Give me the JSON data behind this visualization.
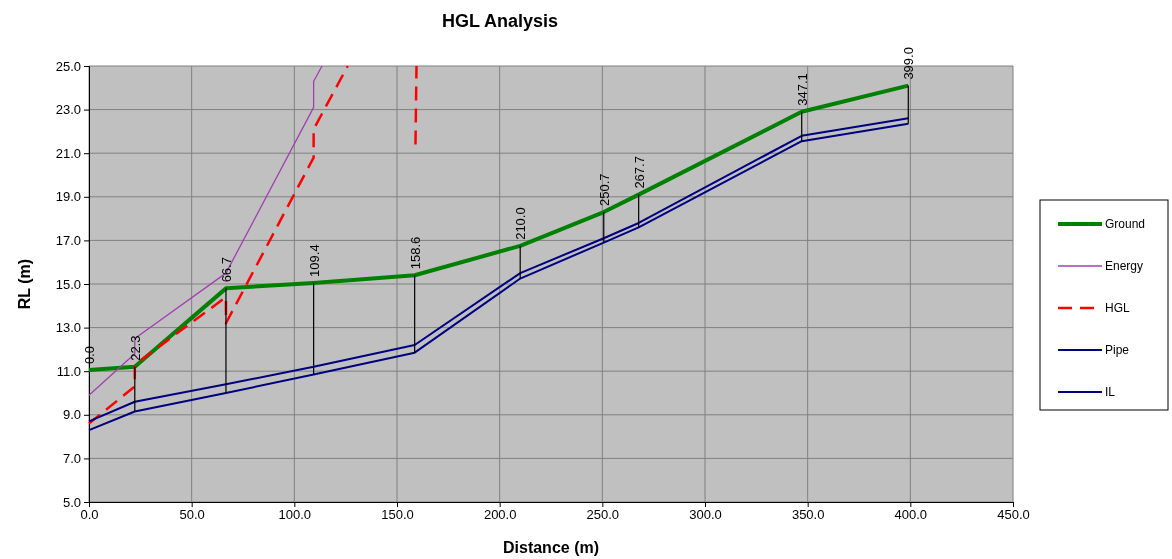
{
  "chart_data": {
    "type": "line",
    "title": "HGL Analysis",
    "xlabel": "Distance (m)",
    "ylabel": "RL (m)",
    "xlim": [
      0,
      450
    ],
    "ylim": [
      5,
      25
    ],
    "xticks": [
      {
        "value": 0,
        "label": "0.0"
      },
      {
        "value": 50,
        "label": "50.0"
      },
      {
        "value": 100,
        "label": "100.0"
      },
      {
        "value": 150,
        "label": "150.0"
      },
      {
        "value": 200,
        "label": "200.0"
      },
      {
        "value": 250,
        "label": "250.0"
      },
      {
        "value": 300,
        "label": "300.0"
      },
      {
        "value": 350,
        "label": "350.0"
      },
      {
        "value": 400,
        "label": "400.0"
      },
      {
        "value": 450,
        "label": "450.0"
      }
    ],
    "yticks": [
      {
        "value": 5,
        "label": "5.0"
      },
      {
        "value": 7,
        "label": "7.0"
      },
      {
        "value": 9,
        "label": "9.0"
      },
      {
        "value": 11,
        "label": "11.0"
      },
      {
        "value": 13,
        "label": "13.0"
      },
      {
        "value": 15,
        "label": "15.0"
      },
      {
        "value": 17,
        "label": "17.0"
      },
      {
        "value": 19,
        "label": "19.0"
      },
      {
        "value": 21,
        "label": "21.0"
      },
      {
        "value": 23,
        "label": "23.0"
      },
      {
        "value": 25,
        "label": "25.0"
      }
    ],
    "grid": true,
    "legend": "right",
    "series": [
      {
        "name": "Ground",
        "color": "#008000",
        "x": [
          0,
          22.3,
          66.7,
          109.4,
          158.6,
          210.0,
          250.7,
          267.7,
          347.1,
          399.0
        ],
        "values": [
          11.05,
          11.2,
          14.8,
          15.05,
          15.4,
          16.75,
          18.3,
          19.1,
          22.9,
          24.1
        ]
      },
      {
        "name": "Energy",
        "color": "#a040b0",
        "x": [
          0,
          22.3,
          22.3,
          66.7,
          109.4,
          109.4,
          113.5
        ],
        "values": [
          9.9,
          11.8,
          12.5,
          15.5,
          23.1,
          24.3,
          25.0
        ]
      },
      {
        "name": "HGL",
        "color": "#ff0000",
        "line_style": "dashed",
        "x": [
          0,
          22.3,
          22.3,
          66.7,
          66.7,
          109.4,
          109.4,
          126.0,
          140,
          159.0,
          159.5
        ],
        "values": [
          8.6,
          10.3,
          11.3,
          14.4,
          13.2,
          20.8,
          22.1,
          25.0,
          null,
          21.4,
          25.0
        ]
      },
      {
        "name": "Pipe",
        "color": "#000080",
        "x": [
          0,
          22.3,
          66.7,
          109.4,
          158.6,
          210.0,
          250.7,
          267.7,
          347.1,
          399.0
        ],
        "values": [
          8.7,
          9.6,
          10.4,
          11.2,
          12.2,
          15.5,
          17.1,
          17.8,
          21.8,
          22.6
        ]
      },
      {
        "name": "IL",
        "color": "#000080",
        "x": [
          0,
          22.3,
          66.7,
          109.4,
          158.6,
          210.0,
          250.7,
          267.7,
          347.1,
          399.0
        ],
        "values": [
          8.3,
          9.15,
          10.0,
          10.85,
          11.85,
          15.25,
          16.9,
          17.6,
          21.55,
          22.35
        ]
      },
      {
        "color": "#000000",
        "x": [
          22.3,
          22.3,
          30,
          66.7,
          66.7,
          80,
          109.4,
          109.4,
          130,
          158.6,
          158.6,
          180,
          210.0,
          210.0,
          230,
          250.7,
          250.7,
          260,
          267.7,
          267.7,
          300,
          347.1,
          347.1,
          370,
          399.0,
          399.0
        ],
        "values": [
          11.2,
          9.15,
          null,
          14.8,
          10.0,
          null,
          15.05,
          10.85,
          null,
          15.4,
          11.85,
          null,
          16.75,
          15.25,
          null,
          18.3,
          16.9,
          null,
          19.1,
          17.6,
          null,
          22.9,
          21.55,
          null,
          24.1,
          22.35
        ]
      }
    ],
    "annotations": [
      {
        "text": "0.0",
        "x": 0,
        "y": 11.05
      },
      {
        "text": "22.3",
        "x": 22.3,
        "y": 11.2
      },
      {
        "text": "66.7",
        "x": 66.7,
        "y": 14.8
      },
      {
        "text": "109.4",
        "x": 109.4,
        "y": 15.05
      },
      {
        "text": "158.6",
        "x": 158.6,
        "y": 15.4
      },
      {
        "text": "210.0",
        "x": 210.0,
        "y": 16.75
      },
      {
        "text": "250.7",
        "x": 250.7,
        "y": 18.3
      },
      {
        "text": "267.7",
        "x": 267.7,
        "y": 19.1
      },
      {
        "text": "347.1",
        "x": 347.1,
        "y": 22.9
      },
      {
        "text": "399.0",
        "x": 399.0,
        "y": 24.1
      }
    ]
  }
}
